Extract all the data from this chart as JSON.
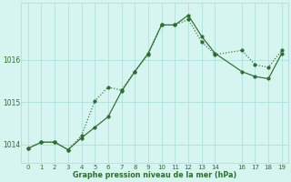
{
  "line_jagged_x": [
    0,
    1,
    2,
    3,
    4,
    5,
    6,
    7,
    8,
    9,
    10,
    11,
    12,
    13,
    14,
    16,
    17,
    18,
    19
  ],
  "line_jagged_y": [
    1013.9,
    1014.05,
    1014.05,
    1013.87,
    1014.15,
    1014.4,
    1014.65,
    1015.25,
    1015.72,
    1016.15,
    1016.82,
    1016.82,
    1017.05,
    1016.55,
    1016.15,
    1015.72,
    1015.6,
    1015.55,
    1016.15
  ],
  "line_smooth_x": [
    0,
    1,
    2,
    3,
    4,
    5,
    6,
    7,
    8,
    9,
    10,
    11,
    12,
    13,
    14,
    16,
    17,
    18,
    19
  ],
  "line_smooth_y": [
    1013.9,
    1014.05,
    1014.05,
    1013.87,
    1014.2,
    1015.02,
    1015.35,
    1015.28,
    1015.72,
    1016.12,
    1016.82,
    1016.82,
    1016.95,
    1016.42,
    1016.12,
    1016.22,
    1015.88,
    1015.82,
    1016.22
  ],
  "line_color": "#2d6e2d",
  "bg_color": "#d6f5f0",
  "grid_color": "#a8ddd8",
  "xlabel": "Graphe pression niveau de la mer (hPa)",
  "yticks": [
    1014,
    1015,
    1016
  ],
  "xticks": [
    0,
    1,
    2,
    3,
    4,
    5,
    6,
    7,
    8,
    9,
    10,
    11,
    12,
    13,
    14,
    16,
    17,
    18,
    19
  ],
  "ylim": [
    1013.55,
    1017.35
  ],
  "xlim": [
    -0.5,
    19.5
  ],
  "figsize": [
    3.2,
    2.0
  ],
  "dpi": 100
}
